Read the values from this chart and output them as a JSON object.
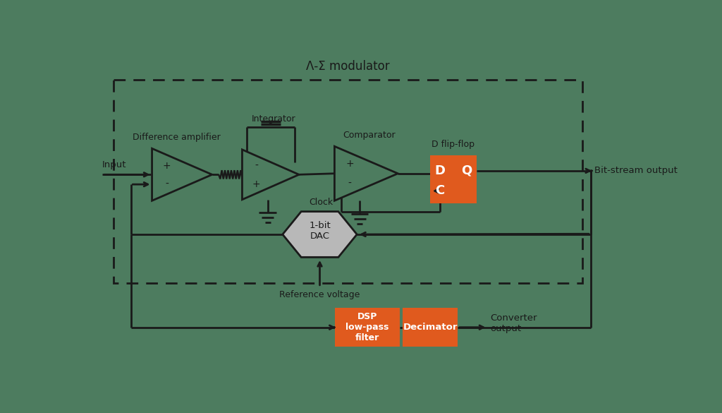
{
  "bg_color": "#4d7c5f",
  "dark_color": "#1a1a1a",
  "orange_color": "#e05a1e",
  "gray_color": "#b8b8b8",
  "white_color": "#ffffff",
  "title": "Λ-Σ modulator",
  "labels": {
    "input": "Input",
    "diff_amp": "Difference amplifier",
    "integrator": "Integrator",
    "comparator": "Comparator",
    "d_flipflop": "D flip-flop",
    "bitstream": "Bit-stream output",
    "clock": "Clock",
    "dac": "1-bit\nDAC",
    "ref_voltage": "Reference voltage",
    "dsp": "DSP\nlow-pass\nfilter",
    "decimator": "Decimator",
    "converter_output": "Converter\noutput"
  }
}
